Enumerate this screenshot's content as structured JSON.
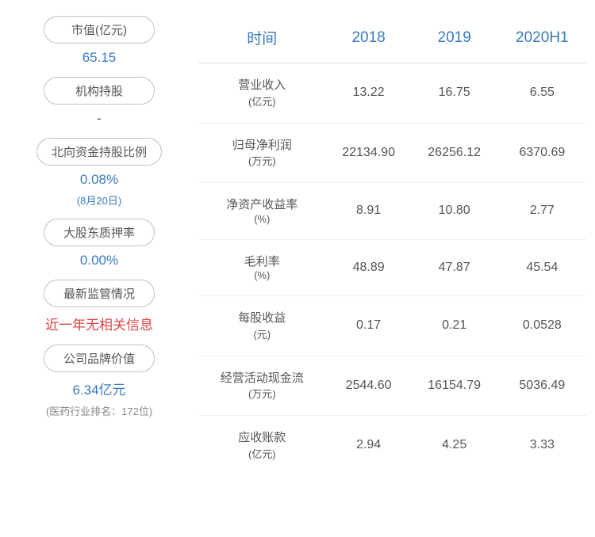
{
  "colors": {
    "accent_blue": "#3a7ac2",
    "text_gray": "#555555",
    "subtext_gray": "#888888",
    "alert_red": "#e04545",
    "border_gray": "#c0c0c0",
    "row_divider": "#f0f0f0"
  },
  "left_cards": [
    {
      "label": "市值(亿元)",
      "value": "65.15",
      "value_color": "#3a7ac2",
      "subvalue": "",
      "sub_color": ""
    },
    {
      "label": "机构持股",
      "value": "-",
      "value_color": "#555555",
      "subvalue": "",
      "sub_color": ""
    },
    {
      "label": "北向资金持股比例",
      "value": "0.08%",
      "value_color": "#3a7ac2",
      "subvalue": "(8月20日)",
      "sub_color": "#3a7ac2"
    },
    {
      "label": "大股东质押率",
      "value": "0.00%",
      "value_color": "#3a7ac2",
      "subvalue": "",
      "sub_color": ""
    },
    {
      "label": "最新监管情况",
      "value": "近一年无相关信息",
      "value_color": "#e04545",
      "subvalue": "",
      "sub_color": ""
    },
    {
      "label": "公司品牌价值",
      "value": "6.34亿元",
      "value_color": "#3a7ac2",
      "subvalue": "(医药行业排名：172位)",
      "sub_color": "#888888"
    }
  ],
  "table": {
    "header_color": "#3a7ac2",
    "header_fontsize": 19,
    "cell_fontsize": 16,
    "cell_color": "#555555",
    "columns": [
      "时间",
      "2018",
      "2019",
      "2020H1"
    ],
    "rows": [
      {
        "metric": "营业收入",
        "unit": "(亿元)",
        "values": [
          "13.22",
          "16.75",
          "6.55"
        ]
      },
      {
        "metric": "归母净利润",
        "unit": "(万元)",
        "values": [
          "22134.90",
          "26256.12",
          "6370.69"
        ]
      },
      {
        "metric": "净资产收益率",
        "unit": "(%)",
        "values": [
          "8.91",
          "10.80",
          "2.77"
        ]
      },
      {
        "metric": "毛利率",
        "unit": "(%)",
        "values": [
          "48.89",
          "47.87",
          "45.54"
        ]
      },
      {
        "metric": "每股收益",
        "unit": "(元)",
        "values": [
          "0.17",
          "0.21",
          "0.0528"
        ]
      },
      {
        "metric": "经营活动现金流",
        "unit": "(万元)",
        "values": [
          "2544.60",
          "16154.79",
          "5036.49"
        ]
      },
      {
        "metric": "应收账款",
        "unit": "(亿元)",
        "values": [
          "2.94",
          "4.25",
          "3.33"
        ]
      }
    ]
  }
}
